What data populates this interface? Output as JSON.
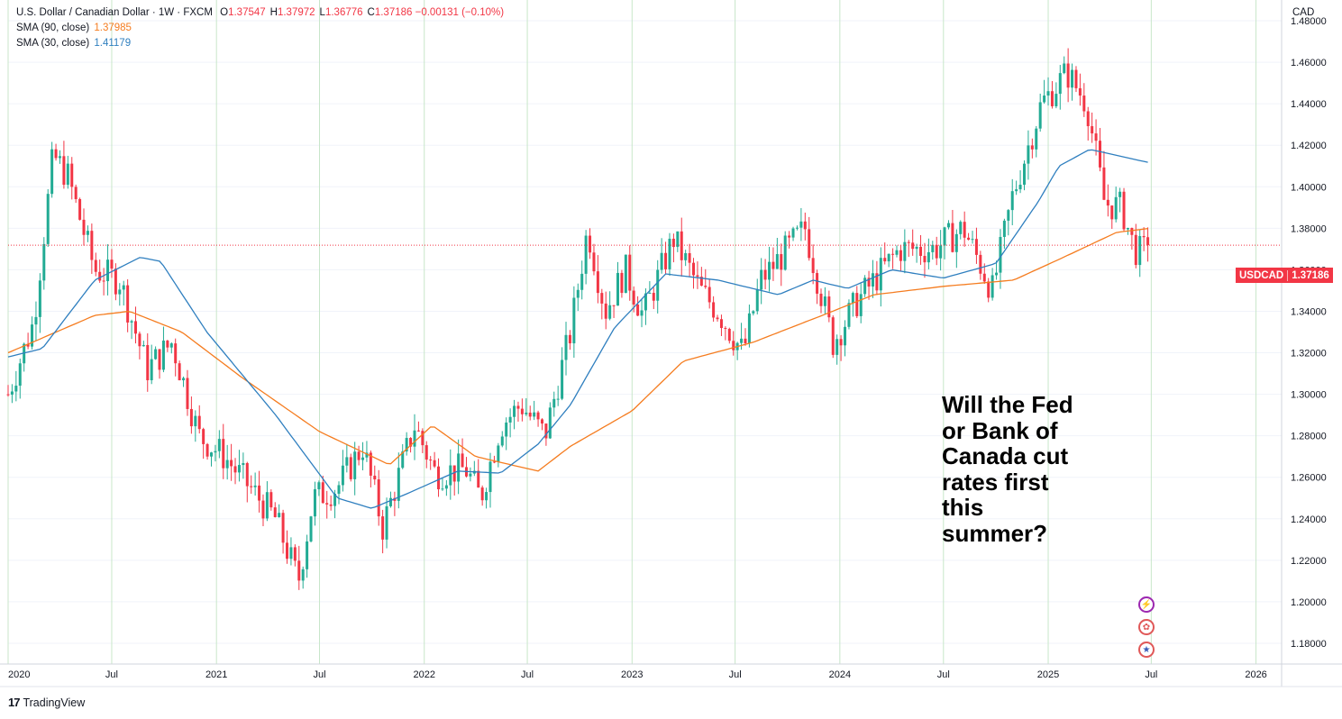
{
  "header": {
    "title": "U.S. Dollar / Canadian Dollar · 1W · FXCM",
    "ohlc": [
      {
        "label": "O",
        "value": "1.37547"
      },
      {
        "label": "H",
        "value": "1.37972"
      },
      {
        "label": "L",
        "value": "1.36776"
      },
      {
        "label": "C",
        "value": "1.37186"
      }
    ],
    "change": "−0.00131 (−0.10%)",
    "sma90_label": "SMA (90, close)",
    "sma90_value": "1.37985",
    "sma30_label": "SMA (30, close)",
    "sma30_value": "1.41179"
  },
  "axis": {
    "currency": "CAD"
  },
  "price_tag": {
    "symbol": "USDCAD",
    "value": "1.37186"
  },
  "annotation": "Will the Fed\nor Bank of\nCanada cut\nrates first\nthis\nsummer?",
  "brand": "TradingView",
  "event_icons": [
    "lightning-icon",
    "canada-flag-icon",
    "us-flag-icon"
  ],
  "colors": {
    "up": "#22ab94",
    "down": "#f23645",
    "sma90": "#f57c1f",
    "sma30": "#2f7fbf",
    "grid": "#f0f3fa",
    "year_line": "#c8e6c9",
    "last_price": "#f23645"
  },
  "chart_data": {
    "type": "candlestick",
    "timeframe": "1W",
    "x_range": [
      "2020-01-01",
      "2026-02-15"
    ],
    "y_range": [
      1.17,
      1.49
    ],
    "y_ticks": [
      "1.48000",
      "1.46000",
      "1.44000",
      "1.42000",
      "1.40000",
      "1.38000",
      "1.36000",
      "1.34000",
      "1.32000",
      "1.30000",
      "1.28000",
      "1.26000",
      "1.24000",
      "1.22000",
      "1.20000",
      "1.18000"
    ],
    "x_ticks": [
      {
        "label": "2020",
        "date": "2020-01-01"
      },
      {
        "label": "Jul",
        "date": "2020-07-01"
      },
      {
        "label": "2021",
        "date": "2021-01-01"
      },
      {
        "label": "Jul",
        "date": "2021-07-01"
      },
      {
        "label": "2022",
        "date": "2022-01-01"
      },
      {
        "label": "Jul",
        "date": "2022-07-01"
      },
      {
        "label": "2023",
        "date": "2023-01-01"
      },
      {
        "label": "Jul",
        "date": "2023-07-01"
      },
      {
        "label": "2024",
        "date": "2024-01-01"
      },
      {
        "label": "Jul",
        "date": "2024-07-01"
      },
      {
        "label": "2025",
        "date": "2025-01-01"
      },
      {
        "label": "Jul",
        "date": "2025-07-01"
      },
      {
        "label": "2026",
        "date": "2026-01-01"
      }
    ],
    "last_price": 1.37186,
    "close_anchors": [
      [
        "2020-01-01",
        1.3
      ],
      [
        "2020-02-15",
        1.335
      ],
      [
        "2020-03-20",
        1.415
      ],
      [
        "2020-04-15",
        1.405
      ],
      [
        "2020-06-01",
        1.36
      ],
      [
        "2020-07-15",
        1.355
      ],
      [
        "2020-09-01",
        1.312
      ],
      [
        "2020-10-15",
        1.325
      ],
      [
        "2020-12-01",
        1.28
      ],
      [
        "2021-01-15",
        1.27
      ],
      [
        "2021-03-01",
        1.255
      ],
      [
        "2021-04-15",
        1.24
      ],
      [
        "2021-05-25",
        1.21
      ],
      [
        "2021-06-20",
        1.25
      ],
      [
        "2021-08-01",
        1.255
      ],
      [
        "2021-09-15",
        1.275
      ],
      [
        "2021-10-20",
        1.236
      ],
      [
        "2021-12-15",
        1.285
      ],
      [
        "2022-01-20",
        1.262
      ],
      [
        "2022-03-15",
        1.264
      ],
      [
        "2022-04-10",
        1.25
      ],
      [
        "2022-05-15",
        1.285
      ],
      [
        "2022-06-20",
        1.295
      ],
      [
        "2022-08-01",
        1.28
      ],
      [
        "2022-09-15",
        1.33
      ],
      [
        "2022-10-15",
        1.38
      ],
      [
        "2022-11-15",
        1.34
      ],
      [
        "2022-12-20",
        1.36
      ],
      [
        "2023-01-20",
        1.338
      ],
      [
        "2023-03-15",
        1.375
      ],
      [
        "2023-05-01",
        1.35
      ],
      [
        "2023-06-01",
        1.34
      ],
      [
        "2023-07-15",
        1.32
      ],
      [
        "2023-08-15",
        1.355
      ],
      [
        "2023-10-01",
        1.37
      ],
      [
        "2023-11-01",
        1.38
      ],
      [
        "2023-12-20",
        1.325
      ],
      [
        "2024-02-01",
        1.345
      ],
      [
        "2024-04-15",
        1.37
      ],
      [
        "2024-06-15",
        1.37
      ],
      [
        "2024-08-05",
        1.38
      ],
      [
        "2024-09-25",
        1.35
      ],
      [
        "2024-10-30",
        1.395
      ],
      [
        "2024-12-20",
        1.44
      ],
      [
        "2025-02-03",
        1.455
      ],
      [
        "2025-03-10",
        1.44
      ],
      [
        "2025-04-10",
        1.392
      ],
      [
        "2025-05-10",
        1.39
      ],
      [
        "2025-06-01",
        1.37
      ],
      [
        "2025-06-15",
        1.368
      ],
      [
        "2025-06-25",
        1.37186
      ]
    ],
    "series": [
      {
        "name": "SMA (90, close)",
        "color": "#f57c1f",
        "points": [
          [
            "2020-01-01",
            1.32
          ],
          [
            "2020-06-01",
            1.338
          ],
          [
            "2020-08-01",
            1.34
          ],
          [
            "2020-11-01",
            1.33
          ],
          [
            "2021-02-15",
            1.308
          ],
          [
            "2021-07-01",
            1.282
          ],
          [
            "2021-11-01",
            1.266
          ],
          [
            "2022-01-15",
            1.285
          ],
          [
            "2022-04-01",
            1.27
          ],
          [
            "2022-07-20",
            1.263
          ],
          [
            "2022-09-15",
            1.275
          ],
          [
            "2023-01-01",
            1.292
          ],
          [
            "2023-04-01",
            1.316
          ],
          [
            "2023-08-01",
            1.325
          ],
          [
            "2023-12-01",
            1.338
          ],
          [
            "2024-03-01",
            1.348
          ],
          [
            "2024-07-01",
            1.352
          ],
          [
            "2024-11-01",
            1.355
          ],
          [
            "2025-01-20",
            1.365
          ],
          [
            "2025-05-01",
            1.378
          ],
          [
            "2025-06-25",
            1.37985
          ]
        ]
      },
      {
        "name": "SMA (30, close)",
        "color": "#2f7fbf",
        "points": [
          [
            "2020-01-01",
            1.318
          ],
          [
            "2020-03-01",
            1.322
          ],
          [
            "2020-06-01",
            1.355
          ],
          [
            "2020-08-20",
            1.366
          ],
          [
            "2020-09-25",
            1.364
          ],
          [
            "2020-12-15",
            1.33
          ],
          [
            "2021-04-15",
            1.29
          ],
          [
            "2021-08-01",
            1.25
          ],
          [
            "2021-10-01",
            1.245
          ],
          [
            "2021-12-01",
            1.252
          ],
          [
            "2022-03-01",
            1.263
          ],
          [
            "2022-05-15",
            1.262
          ],
          [
            "2022-07-20",
            1.276
          ],
          [
            "2022-09-15",
            1.295
          ],
          [
            "2022-12-01",
            1.332
          ],
          [
            "2023-03-01",
            1.358
          ],
          [
            "2023-06-01",
            1.355
          ],
          [
            "2023-09-15",
            1.348
          ],
          [
            "2023-11-15",
            1.355
          ],
          [
            "2024-01-15",
            1.351
          ],
          [
            "2024-04-01",
            1.36
          ],
          [
            "2024-07-01",
            1.356
          ],
          [
            "2024-10-01",
            1.363
          ],
          [
            "2024-12-15",
            1.393
          ],
          [
            "2025-01-20",
            1.41
          ],
          [
            "2025-03-15",
            1.418
          ],
          [
            "2025-06-25",
            1.41179
          ]
        ]
      }
    ]
  }
}
